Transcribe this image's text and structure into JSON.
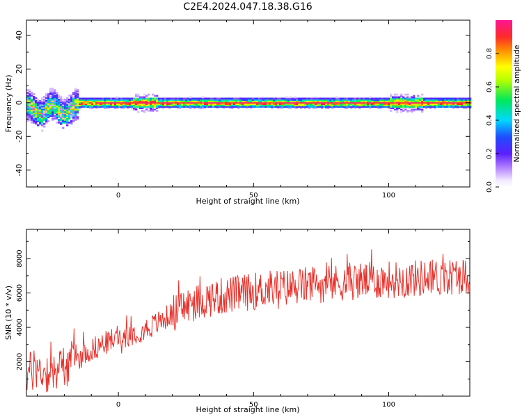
{
  "title": "C2E4.2024.047.18.38.G16",
  "chart_data": [
    {
      "type": "heatmap",
      "title": "C2E4.2024.047.18.38.G16",
      "xlabel": "Height of straight line (km)",
      "ylabel": "Frequency (Hz)",
      "xlim": [
        -34,
        130
      ],
      "ylim": [
        -50,
        49
      ],
      "xticks": [
        0,
        50,
        100
      ],
      "yticks": [
        -40,
        -20,
        0,
        20,
        40
      ],
      "colorbar": {
        "label": "Normalized spectral amplitude",
        "range": [
          0.0,
          1.0
        ],
        "ticks": [
          0.0,
          0.2,
          0.4,
          0.6,
          0.8
        ]
      },
      "colors": [
        "#ffffff",
        "#d7b8ff",
        "#8a2be2",
        "#2a2aff",
        "#00d8ff",
        "#00e85a",
        "#ffff00",
        "#ff8c00",
        "#ff1a3c",
        "#ff1493"
      ],
      "description_points": {
        "band_center_hz": 0,
        "band_halfwidth_hz": 2,
        "scattered_low_altitude_range_km": [
          -34,
          -16
        ],
        "scattered_frequency_range_hz": [
          -20,
          9
        ]
      }
    },
    {
      "type": "line",
      "xlabel": "Height of straight line (km)",
      "ylabel": "SNR (10 * v/v)",
      "xlim": [
        -34,
        130
      ],
      "ylim": [
        0,
        9700
      ],
      "xticks": [
        0,
        50,
        100
      ],
      "yticks": [
        2000,
        4000,
        6000,
        8000
      ],
      "color": "#e8302a",
      "series": [
        {
          "x": [
            -34,
            -30,
            -26,
            -22,
            -18,
            -14,
            -10,
            -6,
            -2,
            2,
            6,
            10,
            14,
            18,
            22,
            26,
            30,
            34,
            38,
            42,
            46,
            50,
            54,
            58,
            62,
            66,
            70,
            74,
            78,
            82,
            86,
            90,
            94,
            98,
            102,
            106,
            110,
            114,
            118,
            122,
            126,
            130
          ],
          "values": [
            1300,
            1500,
            1400,
            1600,
            1900,
            2300,
            2700,
            3000,
            3300,
            3500,
            3700,
            3900,
            4200,
            4600,
            5000,
            5300,
            5500,
            5700,
            5800,
            5900,
            6000,
            6100,
            6200,
            6300,
            6300,
            6400,
            6450,
            6500,
            6550,
            6600,
            6650,
            6700,
            6700,
            6750,
            6800,
            6800,
            6850,
            6900,
            6900,
            6950,
            7000,
            7000
          ]
        }
      ]
    }
  ]
}
